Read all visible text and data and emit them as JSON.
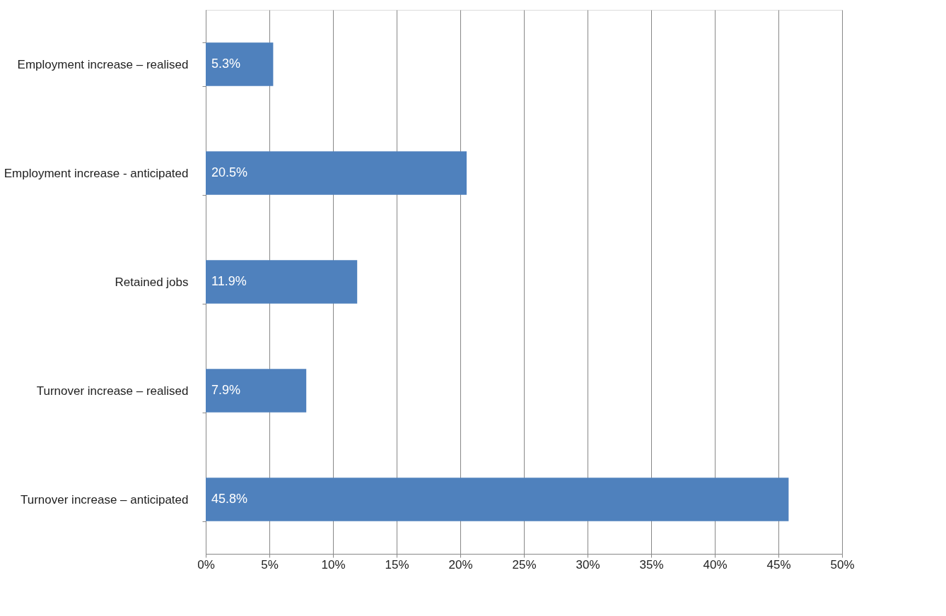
{
  "chart_data": {
    "type": "bar",
    "orientation": "horizontal",
    "categories": [
      "Employment increase – realised",
      "Employment increase - anticipated",
      "Retained jobs",
      "Turnover increase – realised",
      "Turnover increase – anticipated"
    ],
    "values": [
      5.3,
      20.5,
      11.9,
      7.9,
      45.8
    ],
    "value_labels": [
      "5.3%",
      "20.5%",
      "11.9%",
      "7.9%",
      "45.8%"
    ],
    "color": "#4f81bd",
    "xlim": [
      0,
      50
    ],
    "xticks": [
      {
        "value": 0,
        "label": "0%"
      },
      {
        "value": 5,
        "label": "5%"
      },
      {
        "value": 10,
        "label": "10%"
      },
      {
        "value": 15,
        "label": "15%"
      },
      {
        "value": 20,
        "label": "20%"
      },
      {
        "value": 25,
        "label": "25%"
      },
      {
        "value": 30,
        "label": "30%"
      },
      {
        "value": 35,
        "label": "35%"
      },
      {
        "value": 40,
        "label": "40%"
      },
      {
        "value": 45,
        "label": "45%"
      },
      {
        "value": 50,
        "label": "50%"
      }
    ],
    "grid": "x"
  }
}
